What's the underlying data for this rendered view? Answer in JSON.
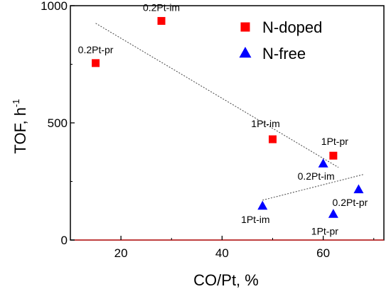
{
  "chart_data": {
    "type": "scatter",
    "xlabel": "CO/Pt, %",
    "ylabel": "TOF, h",
    "ylabel_superscript": "-1",
    "xlim": [
      10,
      72
    ],
    "ylim": [
      0,
      1000
    ],
    "x_ticks": [
      20,
      40,
      60
    ],
    "y_ticks": [
      0,
      500,
      1000
    ],
    "legend_position": "top-right",
    "series": [
      {
        "name": "N-doped",
        "marker": "square",
        "color": "#ff0000",
        "points": [
          {
            "x": 15,
            "y": 755,
            "label": "0.2Pt-pr"
          },
          {
            "x": 28,
            "y": 935,
            "label": "0.2Pt-im"
          },
          {
            "x": 50,
            "y": 430,
            "label": "1Pt-im"
          },
          {
            "x": 62,
            "y": 360,
            "label": "1Pt-pr"
          }
        ]
      },
      {
        "name": "N-free",
        "marker": "triangle",
        "color": "#0000ff",
        "points": [
          {
            "x": 48,
            "y": 145,
            "label": "1Pt-im"
          },
          {
            "x": 60,
            "y": 325,
            "label": "0.2Pt-im"
          },
          {
            "x": 62,
            "y": 110,
            "label": "1Pt-pr"
          },
          {
            "x": 67,
            "y": 215,
            "label": "0.2Pt-pr"
          }
        ]
      }
    ],
    "trend_lines": [
      {
        "from": [
          15,
          925
        ],
        "to": [
          63,
          310
        ]
      },
      {
        "from": [
          48,
          170
        ],
        "to": [
          68,
          280
        ]
      }
    ]
  }
}
